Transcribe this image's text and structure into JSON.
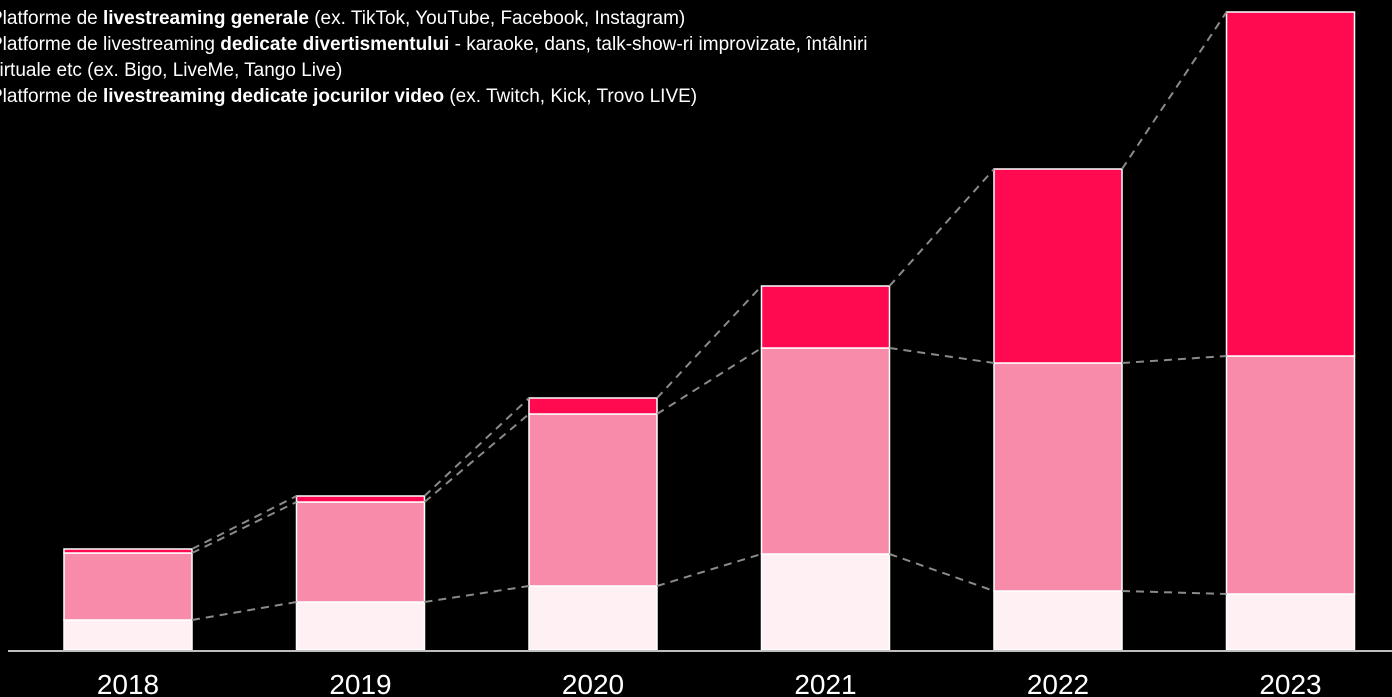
{
  "legend": {
    "general": {
      "prefix": "Platforme de ",
      "bold": "livestreaming generale",
      "suffix": " (ex. TikTok, YouTube, Facebook, Instagram)"
    },
    "entertainment": {
      "prefix": "Platforme de livestreaming ",
      "bold": "dedicate divertismentului",
      "suffix": " - karaoke, dans, talk-show-ri improvizate, întâlniri",
      "line2": "virtuale etc (ex. Bigo, LiveMe, Tango Live)"
    },
    "gaming": {
      "prefix": "Platforme de ",
      "bold": "livestreaming dedicate jocurilor video",
      "suffix": " (ex. Twitch, Kick, Trovo LIVE)"
    }
  },
  "chart_data": {
    "type": "bar",
    "stacked": true,
    "categories": [
      "2018",
      "2019",
      "2020",
      "2021",
      "2022",
      "2023"
    ],
    "series": [
      {
        "name": "Platforme de livestreaming dedicate jocurilor video",
        "color": "#fff0f3",
        "values": [
          3.0,
          4.8,
          6.4,
          9.6,
          5.9,
          5.6
        ]
      },
      {
        "name": "Platforme de livestreaming dedicate divertismentului",
        "color": "#f78ba9",
        "values": [
          6.7,
          10.0,
          17.2,
          20.6,
          22.8,
          23.8
        ]
      },
      {
        "name": "Platforme de livestreaming generale",
        "color": "#ff0a50",
        "values": [
          0.4,
          0.6,
          1.6,
          6.2,
          19.4,
          34.4
        ]
      }
    ],
    "ylim": [
      0,
      64
    ],
    "grid": false,
    "connector_lines": "dashed",
    "bar_outline": "#ffffff"
  }
}
